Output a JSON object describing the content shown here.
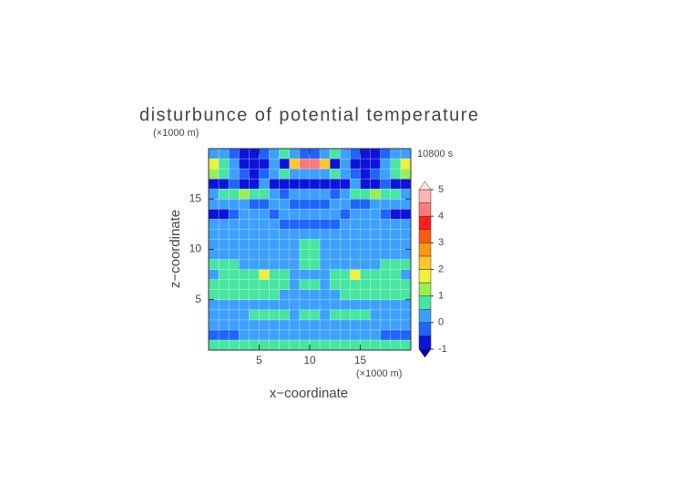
{
  "chart_data": {
    "type": "heatmap",
    "title": "disturbunce of potential temperature",
    "time_label": "10800 s",
    "x_label": "x−coordinate",
    "y_label": "z−coordinate",
    "x_unit": "(×1000 m)",
    "y_unit": "(×1000 m)",
    "xlim": [
      0,
      20
    ],
    "ylim": [
      0,
      20
    ],
    "xticks": [
      5,
      10,
      15
    ],
    "yticks": [
      5,
      10,
      15
    ],
    "x": [
      0.5,
      1.5,
      2.5,
      3.5,
      4.5,
      5.5,
      6.5,
      7.5,
      8.5,
      9.5,
      10.5,
      11.5,
      12.5,
      13.5,
      14.5,
      15.5,
      16.5,
      17.5,
      18.5,
      19.5
    ],
    "y": [
      0.5,
      1.5,
      2.5,
      3.5,
      4.5,
      5.5,
      6.5,
      7.5,
      8.5,
      9.5,
      10.5,
      11.5,
      12.5,
      13.5,
      14.5,
      15.5,
      16.5,
      17.5,
      18.5,
      19.5
    ],
    "z": [
      [
        0.6,
        0.6,
        0.7,
        0.7,
        0.8,
        0.8,
        0.7,
        0.7,
        0.7,
        0.7,
        0.7,
        0.7,
        0.7,
        0.7,
        0.8,
        0.8,
        0.7,
        0.7,
        0.6,
        0.6
      ],
      [
        -0.2,
        -0.3,
        -0.2,
        0.2,
        0.2,
        0.3,
        0.3,
        0.2,
        0.2,
        0.3,
        0.3,
        0.2,
        0.2,
        0.3,
        0.3,
        0.2,
        0.2,
        -0.2,
        -0.3,
        -0.2
      ],
      [
        0.3,
        0.2,
        0.2,
        0.3,
        0.3,
        0.2,
        0.2,
        0.3,
        0.2,
        0.2,
        0.2,
        0.2,
        0.3,
        0.2,
        0.2,
        0.3,
        0.3,
        0.2,
        0.2,
        0.3
      ],
      [
        0.3,
        0.3,
        0.3,
        0.3,
        0.6,
        0.7,
        0.7,
        0.6,
        0.4,
        0.7,
        0.7,
        0.4,
        0.6,
        0.7,
        0.7,
        0.6,
        0.3,
        0.3,
        0.3,
        0.3
      ],
      [
        0.3,
        0.3,
        0.2,
        0.3,
        0.3,
        0.3,
        0.2,
        0.2,
        0.3,
        0.3,
        0.3,
        0.3,
        0.2,
        0.2,
        0.3,
        0.3,
        0.3,
        0.2,
        0.3,
        0.3
      ],
      [
        0.8,
        0.8,
        0.8,
        0.8,
        0.8,
        0.7,
        0.6,
        0.3,
        0.3,
        0.3,
        0.3,
        0.3,
        0.3,
        0.6,
        0.7,
        0.8,
        0.8,
        0.8,
        0.8,
        0.8
      ],
      [
        0.7,
        0.8,
        0.8,
        0.8,
        0.8,
        0.8,
        0.8,
        0.7,
        0.3,
        0.6,
        0.6,
        0.3,
        0.7,
        0.8,
        0.8,
        0.8,
        0.8,
        0.8,
        0.8,
        0.7
      ],
      [
        0.3,
        0.6,
        0.7,
        0.8,
        0.8,
        1.6,
        0.8,
        0.7,
        0.3,
        0.3,
        0.3,
        0.3,
        0.7,
        0.8,
        1.6,
        0.8,
        0.8,
        0.7,
        0.6,
        0.3
      ],
      [
        0.7,
        0.7,
        0.7,
        0.3,
        0.3,
        0.3,
        0.3,
        0.3,
        0.3,
        0.7,
        0.7,
        0.3,
        0.3,
        0.3,
        0.3,
        0.3,
        0.3,
        0.7,
        0.7,
        0.7
      ],
      [
        0.3,
        0.3,
        0.3,
        0.3,
        0.3,
        0.3,
        0.3,
        0.3,
        0.3,
        0.8,
        0.8,
        0.3,
        0.3,
        0.3,
        0.3,
        0.3,
        0.3,
        0.3,
        0.3,
        0.3
      ],
      [
        0.3,
        0.3,
        0.3,
        0.3,
        0.3,
        0.3,
        0.3,
        0.3,
        0.3,
        0.6,
        0.6,
        0.3,
        0.3,
        0.3,
        0.3,
        0.3,
        0.3,
        0.3,
        0.3,
        0.3
      ],
      [
        0.3,
        0.3,
        0.3,
        0.3,
        0.3,
        0.3,
        0.3,
        0.3,
        0.3,
        0.2,
        0.2,
        0.3,
        0.3,
        0.3,
        0.3,
        0.3,
        0.3,
        0.3,
        0.3,
        0.3
      ],
      [
        0.2,
        0.3,
        0.3,
        0.2,
        0.2,
        0.3,
        0.3,
        -0.2,
        -0.2,
        -0.3,
        -0.3,
        -0.2,
        -0.2,
        0.3,
        0.3,
        0.2,
        0.2,
        0.3,
        0.3,
        0.2
      ],
      [
        -0.6,
        -0.6,
        -0.3,
        0.3,
        0.3,
        0.3,
        -0.2,
        0.3,
        0.3,
        0.2,
        0.2,
        0.3,
        0.3,
        -0.2,
        0.3,
        0.3,
        0.3,
        -0.3,
        -0.6,
        -0.6
      ],
      [
        0.3,
        0.3,
        0.3,
        0.3,
        -0.2,
        -0.2,
        0.3,
        0.3,
        -0.3,
        -0.3,
        -0.3,
        -0.3,
        0.3,
        0.3,
        -0.2,
        -0.2,
        0.3,
        0.3,
        0.3,
        0.3
      ],
      [
        0.3,
        0.6,
        0.8,
        1.3,
        0.8,
        0.6,
        0.3,
        -0.2,
        0.3,
        0.3,
        0.3,
        0.3,
        -0.2,
        0.3,
        0.6,
        0.8,
        1.3,
        0.8,
        0.6,
        0.3
      ],
      [
        -0.6,
        -0.6,
        -0.3,
        -0.6,
        -0.6,
        0.3,
        -0.6,
        -0.6,
        -0.6,
        -0.6,
        -0.6,
        -0.6,
        -0.6,
        -0.6,
        0.3,
        -0.6,
        -0.6,
        -0.3,
        -0.6,
        -0.6
      ],
      [
        1.2,
        0.8,
        0.3,
        -0.3,
        -0.6,
        -0.3,
        0.3,
        0.8,
        0.3,
        0.3,
        0.3,
        0.3,
        0.8,
        0.3,
        -0.3,
        -0.6,
        -0.3,
        0.3,
        0.8,
        1.2
      ],
      [
        1.6,
        1.0,
        0.3,
        -0.6,
        -0.6,
        -0.6,
        0.3,
        -0.6,
        2.5,
        4.2,
        4.2,
        2.5,
        -0.6,
        0.3,
        -0.6,
        -0.6,
        -0.6,
        0.3,
        1.0,
        1.6
      ],
      [
        0.2,
        0.2,
        -0.3,
        -0.6,
        -0.6,
        -0.3,
        0.3,
        0.6,
        0.3,
        -0.3,
        -0.3,
        0.3,
        0.6,
        0.3,
        -0.3,
        -0.6,
        -0.6,
        -0.3,
        0.2,
        0.2
      ]
    ],
    "levels": [
      -1,
      -0.5,
      0,
      0.5,
      1,
      1.5,
      2,
      2.5,
      3,
      3.5,
      4,
      4.5,
      5
    ],
    "colors": [
      "#0a14dc",
      "#1e64ff",
      "#3ca0ff",
      "#46e6a0",
      "#96f050",
      "#f0f03c",
      "#ffc828",
      "#ff9614",
      "#ff5a14",
      "#ff1e1e",
      "#ff7878",
      "#ffb4b4"
    ],
    "under_color": "#0000a0",
    "over_color": "#ffe6e6",
    "colorbar_ticks": [
      -1,
      0,
      1,
      2,
      3,
      4,
      5
    ],
    "grid": true
  }
}
